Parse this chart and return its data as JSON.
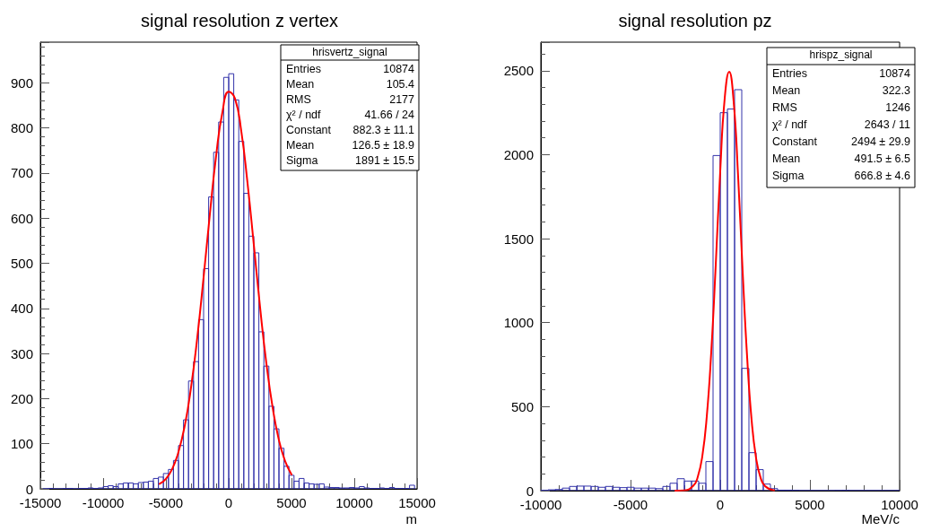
{
  "chart_data": [
    {
      "type": "histogram",
      "title": "signal resolution z vertex",
      "xlabel": "m",
      "bins": [
        -14800,
        -14400,
        -14000,
        -13600,
        -13200,
        -12800,
        -12400,
        -12000,
        -11600,
        -11200,
        -10800,
        -10400,
        -10000,
        -9600,
        -9200,
        -8800,
        -8400,
        -8000,
        -7600,
        -7200,
        -6800,
        -6400,
        -6000,
        -5600,
        -5200,
        -4800,
        -4400,
        -4000,
        -3600,
        -3200,
        -2800,
        -2400,
        -2000,
        -1600,
        -1200,
        -800,
        -400,
        0,
        400,
        800,
        1200,
        1600,
        2000,
        2400,
        2800,
        3200,
        3600,
        4000,
        4400,
        4800,
        5200,
        5600,
        6000,
        6400,
        6800,
        7200,
        7600,
        8000,
        8400,
        8800,
        9200,
        9600,
        10000,
        10400,
        10800,
        11200,
        11600,
        12000,
        12400,
        12800,
        13200,
        13600,
        14000,
        14400,
        14800
      ],
      "series": [
        {
          "color": "#3333aa",
          "values": [
            0,
            1,
            0,
            0,
            1,
            1,
            0,
            1,
            1,
            2,
            1,
            2,
            5,
            7,
            5,
            11,
            13,
            13,
            11,
            14,
            15,
            17,
            23,
            26,
            34,
            43,
            63,
            96,
            153,
            239,
            282,
            375,
            488,
            647,
            746,
            813,
            912,
            920,
            862,
            770,
            655,
            560,
            523,
            348,
            272,
            183,
            133,
            90,
            50,
            30,
            17,
            23,
            13,
            11,
            10,
            11,
            4,
            3,
            3,
            2,
            2,
            3,
            2,
            5,
            2,
            1,
            1,
            2,
            1,
            3,
            1,
            1,
            1,
            8
          ]
        },
        {
          "type": "line",
          "color": "#ff0000",
          "x": [
            -5500,
            -5000,
            -4500,
            -4000,
            -3500,
            -3000,
            -2500,
            -2000,
            -1500,
            -1000,
            -500,
            0,
            500,
            1000,
            1500,
            2000,
            2500,
            3000,
            3500,
            4000,
            4500,
            5000
          ],
          "values": [
            11,
            22,
            44,
            82,
            140,
            225,
            336,
            469,
            609,
            739,
            835,
            880,
            865,
            793,
            677,
            541,
            402,
            278,
            180,
            108,
            61,
            32
          ]
        }
      ],
      "marker": "none",
      "line_style": "solid",
      "xlim": [
        -15000,
        15000
      ],
      "xticks": [
        -15000,
        -10000,
        -5000,
        0,
        5000,
        10000,
        15000
      ],
      "ylim": [
        0,
        990
      ],
      "yticks": [
        0,
        100,
        200,
        300,
        400,
        500,
        600,
        700,
        800,
        900
      ],
      "annotations": [
        "hrisvertz_signal",
        "Entries",
        "10874",
        "Mean",
        "105.4",
        "RMS",
        "2177",
        "χ² / ndf",
        "41.66 / 24",
        "Constant",
        "882.3 ± 11.1",
        "Mean",
        "126.5 ± 18.9",
        "Sigma",
        "1891 ± 15.5"
      ]
    },
    {
      "type": "histogram",
      "title": "signal resolution pz",
      "xlabel": "MeV/c",
      "bins": [
        -10000,
        -9600,
        -9200,
        -8800,
        -8400,
        -8000,
        -7600,
        -7200,
        -6800,
        -6400,
        -6000,
        -5600,
        -5200,
        -4800,
        -4400,
        -4000,
        -3600,
        -3200,
        -2800,
        -2400,
        -2000,
        -1600,
        -1200,
        -800,
        -400,
        0,
        400,
        800,
        1200,
        1600,
        2000,
        2400,
        2800,
        3200,
        3600,
        4000,
        4400,
        4800,
        5200,
        5600,
        6000,
        6400,
        6800,
        7200,
        7600,
        8000,
        8400,
        8800,
        9200,
        9600,
        10000
      ],
      "series": [
        {
          "color": "#3333aa",
          "values": [
            2,
            5,
            7,
            15,
            25,
            27,
            27,
            25,
            20,
            25,
            20,
            18,
            20,
            15,
            15,
            15,
            12,
            25,
            44,
            71,
            57,
            57,
            44,
            173,
            1995,
            2250,
            2272,
            2387,
            728,
            226,
            125,
            39,
            12,
            3,
            3,
            2,
            0,
            0,
            0,
            0,
            0,
            1,
            2,
            0,
            0,
            0,
            0,
            0,
            0,
            0
          ]
        },
        {
          "type": "line",
          "color": "#ff0000",
          "x": [
            -2500,
            -2000,
            -1500,
            -1250,
            -1000,
            -750,
            -500,
            -250,
            0,
            250,
            500,
            750,
            1000,
            1250,
            1500,
            1750,
            2000,
            2250,
            2500,
            3000
          ],
          "values": [
            0,
            2,
            29,
            83,
            204,
            441,
            826,
            1343,
            1901,
            2336,
            2494,
            2314,
            1865,
            1306,
            795,
            420,
            193,
            77,
            27,
            2
          ]
        }
      ],
      "marker": "none",
      "line_style": "solid",
      "xlim": [
        -10000,
        10000
      ],
      "xticks": [
        -10000,
        -5000,
        0,
        5000,
        10000
      ],
      "ylim": [
        0,
        2670
      ],
      "yticks": [
        0,
        500,
        1000,
        1500,
        2000,
        2500
      ],
      "annotations": [
        "hrispz_signal",
        "Entries",
        "10874",
        "Mean",
        "322.3",
        "RMS",
        "1246",
        "χ² / ndf",
        "2643 / 11",
        "Constant",
        "2494 ± 29.9",
        "Mean",
        "491.5 ± 6.5",
        "Sigma",
        "666.8 ± 4.6"
      ]
    }
  ]
}
